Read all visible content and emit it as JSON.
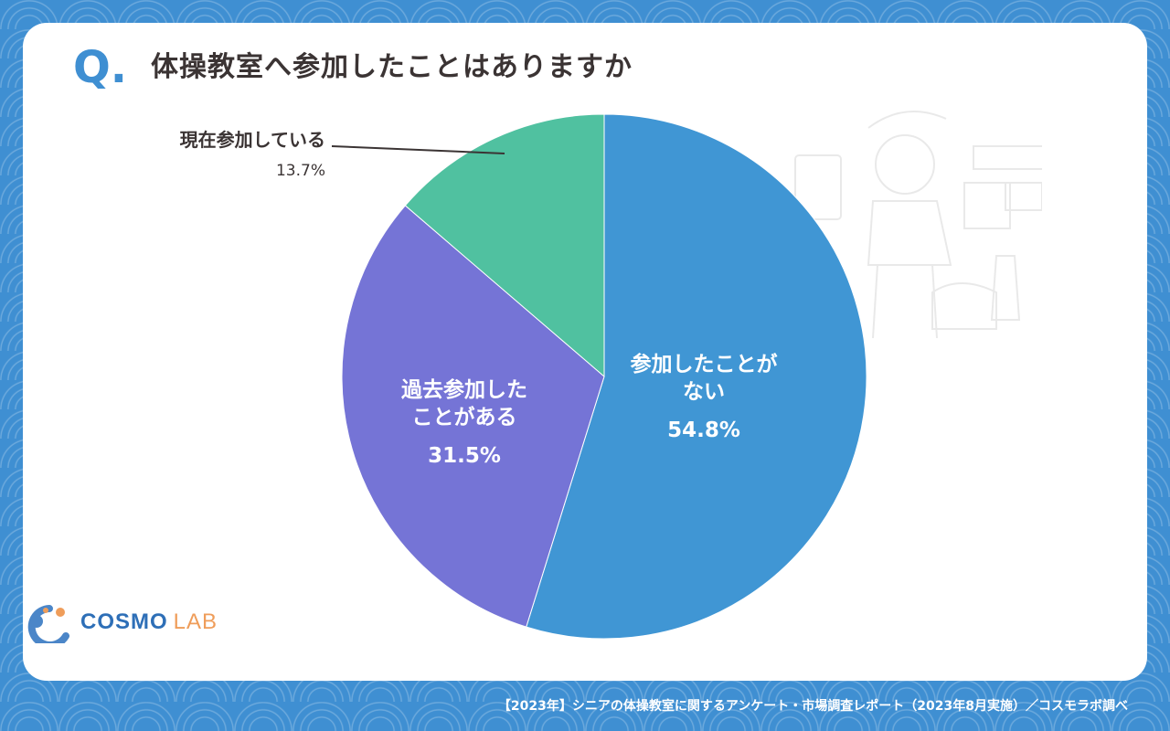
{
  "header": {
    "q_label": "Q.",
    "question": "体操教室へ参加したことはありますか"
  },
  "chart_data": {
    "type": "pie",
    "title": "体操教室へ参加したことはありますか",
    "slices": [
      {
        "label": "参加したことがない",
        "label_lines": [
          "参加したことが",
          "ない"
        ],
        "value": 54.8,
        "value_text": "54.8%",
        "color": "#4096d4"
      },
      {
        "label": "過去参加したことがある",
        "label_lines": [
          "過去参加した",
          "ことがある"
        ],
        "value": 31.5,
        "value_text": "31.5%",
        "color": "#7574d6"
      },
      {
        "label": "現在参加している",
        "label_lines": [
          "現在参加している"
        ],
        "value": 13.7,
        "value_text": "13.7%",
        "color": "#50c1a0"
      }
    ],
    "start": "12 o'clock",
    "direction": "clockwise",
    "external_label": "現在参加している"
  },
  "logo": {
    "brand": "COSMO",
    "suffix": "LAB",
    "colors": {
      "brand": "#2e6fb7",
      "suffix": "#ef9d5a"
    }
  },
  "footer": {
    "text": "【2023年】シニアの体操教室に関するアンケート・市場調査レポート（2023年8月実施）／コスモラボ調べ"
  },
  "colors": {
    "background": "#3f8fd2",
    "card": "#ffffff",
    "title": "#3b3434",
    "accent": "#3f8fd2"
  }
}
